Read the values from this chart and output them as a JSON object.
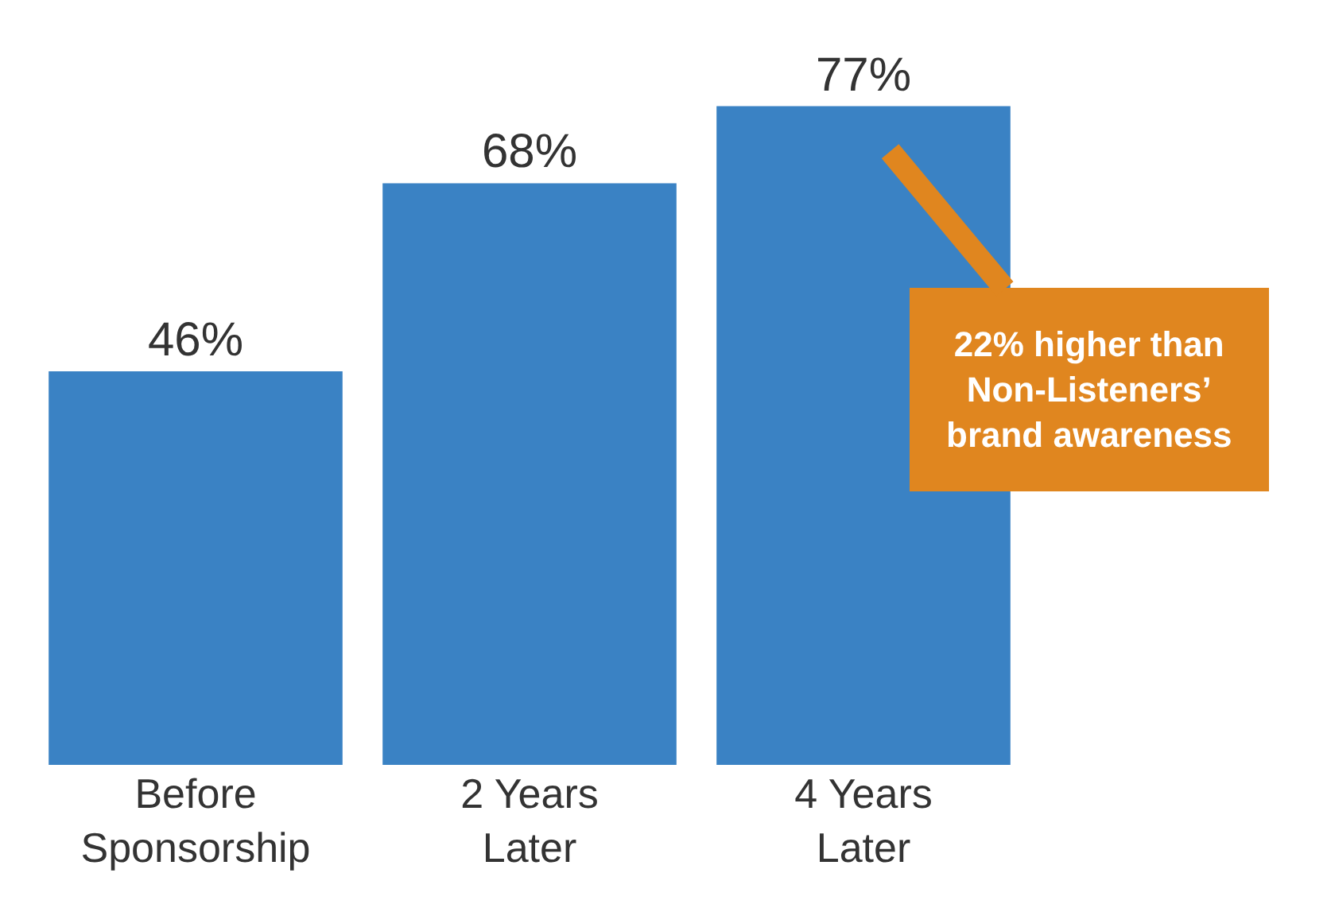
{
  "chart_data": {
    "type": "bar",
    "categories": [
      "Before Sponsorship",
      "2 Years Later",
      "4 Years Later"
    ],
    "values": [
      46,
      68,
      77
    ],
    "value_labels": [
      "46%",
      "68%",
      "77%"
    ],
    "color": "#3a82c4",
    "grid": false,
    "annotations": [
      "22% higher than Non-Listeners’ brand awareness"
    ]
  }
}
